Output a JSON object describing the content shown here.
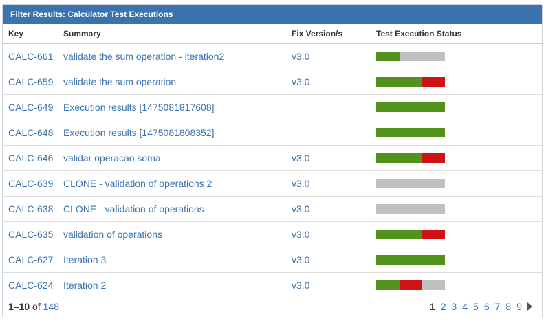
{
  "gadget": {
    "title": "Filter Results: Calculator Test Executions"
  },
  "columns": {
    "key": "Key",
    "summary": "Summary",
    "fix_version": "Fix Version/s",
    "status": "Test Execution Status"
  },
  "rows": [
    {
      "key": "CALC-661",
      "summary": "validate the sum operation - iteration2",
      "fix_version": "v3.0",
      "status": {
        "pass": 0.34,
        "fail": 0,
        "todo": 0.66
      }
    },
    {
      "key": "CALC-659",
      "summary": "validate the sum operation",
      "fix_version": "v3.0",
      "status": {
        "pass": 0.67,
        "fail": 0.33,
        "todo": 0
      }
    },
    {
      "key": "CALC-649",
      "summary": "Execution results [1475081817608]",
      "fix_version": "",
      "status": {
        "pass": 1,
        "fail": 0,
        "todo": 0
      }
    },
    {
      "key": "CALC-648",
      "summary": "Execution results [1475081808352]",
      "fix_version": "",
      "status": {
        "pass": 1,
        "fail": 0,
        "todo": 0
      }
    },
    {
      "key": "CALC-646",
      "summary": "validar operacao soma",
      "fix_version": "v3.0",
      "status": {
        "pass": 0.67,
        "fail": 0.33,
        "todo": 0
      }
    },
    {
      "key": "CALC-639",
      "summary": "CLONE - validation of operations 2",
      "fix_version": "v3.0",
      "status": {
        "pass": 0,
        "fail": 0,
        "todo": 1
      }
    },
    {
      "key": "CALC-638",
      "summary": "CLONE - validation of operations",
      "fix_version": "v3.0",
      "status": {
        "pass": 0,
        "fail": 0,
        "todo": 1
      }
    },
    {
      "key": "CALC-635",
      "summary": "validation of operations",
      "fix_version": "v3.0",
      "status": {
        "pass": 0.67,
        "fail": 0.33,
        "todo": 0
      }
    },
    {
      "key": "CALC-627",
      "summary": "Iteration 3",
      "fix_version": "v3.0",
      "status": {
        "pass": 1,
        "fail": 0,
        "todo": 0
      }
    },
    {
      "key": "CALC-624",
      "summary": "Iteration 2",
      "fix_version": "v3.0",
      "status": {
        "pass": 0.34,
        "fail": 0.33,
        "todo": 0.33
      }
    }
  ],
  "footer": {
    "range": "1–10",
    "of_label": "of",
    "total": "148",
    "pages": [
      "1",
      "2",
      "3",
      "4",
      "5",
      "6",
      "7",
      "8",
      "9"
    ],
    "current_page": "1",
    "next_icon": "next-page-arrow-icon"
  },
  "colors": {
    "header_bg": "#3b73af",
    "link": "#3b73af",
    "pass": "#51911c",
    "fail": "#d01216",
    "todo": "#c0c0c0"
  }
}
